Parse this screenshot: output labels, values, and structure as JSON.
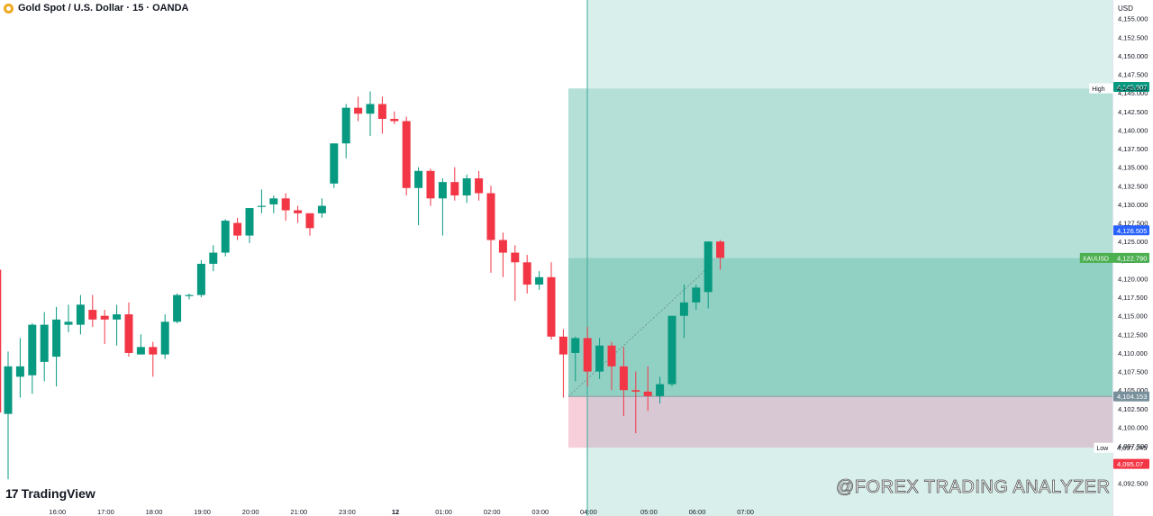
{
  "header": {
    "title": "Gold Spot / U.S. Dollar · 15 · OANDA",
    "currency": "USD"
  },
  "branding": {
    "logo_text": "TradingView",
    "logo_mark": "17",
    "watermark": "@FOREX TRADING ANALYZER"
  },
  "colors": {
    "up": "#089981",
    "down": "#f23645",
    "zone_upper": "#b9e2db",
    "zone_lower": "#f4c6d3",
    "price_tag": "#4caf50",
    "blue_tag": "#2962ff",
    "gray_tag": "#78909c",
    "high_tag": "#089981"
  },
  "chart_data": {
    "type": "candlestick",
    "symbol": "XAUUSD",
    "interval": "15",
    "ylim": [
      4090.0,
      4157.5
    ],
    "y_ticks": [
      4092.5,
      4095.0,
      4097.5,
      4100.0,
      4102.5,
      4105.0,
      4107.5,
      4110.0,
      4112.5,
      4115.0,
      4117.5,
      4120.0,
      4122.5,
      4125.0,
      4127.5,
      4130.0,
      4132.5,
      4135.0,
      4137.5,
      4140.0,
      4142.5,
      4145.0,
      4147.5,
      4150.0,
      4152.5,
      4155.0
    ],
    "x_ticks": [
      {
        "label": "16:00",
        "index": 2
      },
      {
        "label": "17:00",
        "index": 6
      },
      {
        "label": "18:00",
        "index": 10
      },
      {
        "label": "19:00",
        "index": 14
      },
      {
        "label": "20:00",
        "index": 18
      },
      {
        "label": "21:00",
        "index": 22
      },
      {
        "label": "23:00",
        "index": 26
      },
      {
        "label": "12",
        "index": 30,
        "bold": true
      },
      {
        "label": "01:00",
        "index": 34
      },
      {
        "label": "02:00",
        "index": 38
      },
      {
        "label": "03:00",
        "index": 42
      },
      {
        "label": "04:00",
        "index": 46
      },
      {
        "label": "05:00",
        "index": 51
      },
      {
        "label": "06:00",
        "index": 55
      },
      {
        "label": "07:00",
        "index": 59
      }
    ],
    "candles": [
      {
        "o": 4101.8,
        "h": 4110.2,
        "l": 4093.0,
        "c": 4108.2
      },
      {
        "o": 4106.8,
        "h": 4112.0,
        "l": 4104.0,
        "c": 4108.2
      },
      {
        "o": 4107.0,
        "h": 4114.0,
        "l": 4104.5,
        "c": 4113.8
      },
      {
        "o": 4108.8,
        "h": 4115.5,
        "l": 4106.2,
        "c": 4113.8
      },
      {
        "o": 4109.5,
        "h": 4116.2,
        "l": 4105.5,
        "c": 4114.5
      },
      {
        "o": 4113.8,
        "h": 4116.5,
        "l": 4112.8,
        "c": 4114.2
      },
      {
        "o": 4113.8,
        "h": 4117.8,
        "l": 4112.5,
        "c": 4116.5
      },
      {
        "o": 4115.8,
        "h": 4117.8,
        "l": 4113.5,
        "c": 4114.5
      },
      {
        "o": 4115.0,
        "h": 4115.8,
        "l": 4111.2,
        "c": 4114.5
      },
      {
        "o": 4114.5,
        "h": 4116.5,
        "l": 4111.0,
        "c": 4115.2
      },
      {
        "o": 4115.2,
        "h": 4116.8,
        "l": 4109.5,
        "c": 4110.0
      },
      {
        "o": 4109.8,
        "h": 4112.5,
        "l": 4109.8,
        "c": 4110.8
      },
      {
        "o": 4110.8,
        "h": 4111.5,
        "l": 4106.8,
        "c": 4109.8
      },
      {
        "o": 4109.8,
        "h": 4115.2,
        "l": 4109.2,
        "c": 4114.2
      },
      {
        "o": 4114.2,
        "h": 4118.0,
        "l": 4114.0,
        "c": 4117.8
      },
      {
        "o": 4117.8,
        "h": 4118.0,
        "l": 4117.2,
        "c": 4117.8
      },
      {
        "o": 4117.8,
        "h": 4122.5,
        "l": 4117.5,
        "c": 4122.0
      },
      {
        "o": 4122.0,
        "h": 4124.5,
        "l": 4121.0,
        "c": 4123.5
      },
      {
        "o": 4123.5,
        "h": 4128.0,
        "l": 4123.0,
        "c": 4127.8
      },
      {
        "o": 4127.5,
        "h": 4128.2,
        "l": 4125.2,
        "c": 4125.8
      },
      {
        "o": 4125.8,
        "h": 4129.5,
        "l": 4124.8,
        "c": 4129.5
      },
      {
        "o": 4129.8,
        "h": 4132.0,
        "l": 4128.8,
        "c": 4129.8
      },
      {
        "o": 4130.0,
        "h": 4131.2,
        "l": 4128.8,
        "c": 4130.8
      },
      {
        "o": 4130.8,
        "h": 4131.5,
        "l": 4127.8,
        "c": 4129.2
      },
      {
        "o": 4129.2,
        "h": 4129.8,
        "l": 4127.5,
        "c": 4128.8
      },
      {
        "o": 4128.8,
        "h": 4128.8,
        "l": 4125.8,
        "c": 4126.8
      },
      {
        "o": 4128.8,
        "h": 4130.8,
        "l": 4128.2,
        "c": 4129.8
      },
      {
        "o": 4132.8,
        "h": 4138.2,
        "l": 4132.2,
        "c": 4138.2
      },
      {
        "o": 4138.2,
        "h": 4143.5,
        "l": 4136.2,
        "c": 4143.0
      },
      {
        "o": 4143.0,
        "h": 4144.5,
        "l": 4141.2,
        "c": 4142.2
      },
      {
        "o": 4142.2,
        "h": 4145.2,
        "l": 4139.2,
        "c": 4143.5
      },
      {
        "o": 4143.5,
        "h": 4144.5,
        "l": 4139.5,
        "c": 4141.5
      },
      {
        "o": 4141.5,
        "h": 4142.5,
        "l": 4140.8,
        "c": 4141.2
      },
      {
        "o": 4141.2,
        "h": 4141.8,
        "l": 4131.2,
        "c": 4132.2
      },
      {
        "o": 4132.2,
        "h": 4135.0,
        "l": 4127.2,
        "c": 4134.5
      },
      {
        "o": 4134.5,
        "h": 4134.8,
        "l": 4129.8,
        "c": 4130.8
      },
      {
        "o": 4130.8,
        "h": 4133.5,
        "l": 4125.8,
        "c": 4133.0
      },
      {
        "o": 4133.0,
        "h": 4135.0,
        "l": 4130.5,
        "c": 4131.2
      },
      {
        "o": 4131.2,
        "h": 4134.0,
        "l": 4130.2,
        "c": 4133.5
      },
      {
        "o": 4133.5,
        "h": 4134.5,
        "l": 4130.5,
        "c": 4131.5
      },
      {
        "o": 4131.5,
        "h": 4132.5,
        "l": 4120.8,
        "c": 4125.2
      },
      {
        "o": 4125.2,
        "h": 4126.2,
        "l": 4120.2,
        "c": 4123.5
      },
      {
        "o": 4123.5,
        "h": 4124.5,
        "l": 4117.0,
        "c": 4122.2
      },
      {
        "o": 4122.2,
        "h": 4123.2,
        "l": 4118.0,
        "c": 4119.2
      },
      {
        "o": 4119.2,
        "h": 4121.0,
        "l": 4118.5,
        "c": 4120.2
      },
      {
        "o": 4120.2,
        "h": 4122.2,
        "l": 4111.8,
        "c": 4112.2
      },
      {
        "o": 4112.2,
        "h": 4113.2,
        "l": 4104.0,
        "c": 4109.8
      },
      {
        "o": 4110.0,
        "h": 4112.2,
        "l": 4106.2,
        "c": 4112.0
      },
      {
        "o": 4112.0,
        "h": 4113.5,
        "l": 4105.5,
        "c": 4107.5
      },
      {
        "o": 4107.5,
        "h": 4112.0,
        "l": 4106.5,
        "c": 4111.0
      },
      {
        "o": 4111.0,
        "h": 4111.5,
        "l": 4105.0,
        "c": 4108.2
      },
      {
        "o": 4108.2,
        "h": 4110.8,
        "l": 4101.5,
        "c": 4105.0
      },
      {
        "o": 4105.0,
        "h": 4107.5,
        "l": 4099.2,
        "c": 4104.8
      },
      {
        "o": 4104.8,
        "h": 4108.2,
        "l": 4102.2,
        "c": 4104.2
      },
      {
        "o": 4104.2,
        "h": 4106.8,
        "l": 4103.2,
        "c": 4105.8
      },
      {
        "o": 4105.8,
        "h": 4115.0,
        "l": 4105.5,
        "c": 4115.0
      },
      {
        "o": 4115.0,
        "h": 4119.2,
        "l": 4112.0,
        "c": 4116.8
      },
      {
        "o": 4116.8,
        "h": 4119.2,
        "l": 4115.8,
        "c": 4118.8
      },
      {
        "o": 4118.2,
        "h": 4125.0,
        "l": 4116.0,
        "c": 4125.0
      },
      {
        "o": 4125.0,
        "h": 4125.2,
        "l": 4121.2,
        "c": 4122.8
      }
    ],
    "zones": {
      "upper_top": 4157.5,
      "upper_mid": 4145.6,
      "entry": 4122.79,
      "stop": 4104.15,
      "low": 4097.245
    },
    "price_labels": [
      {
        "label": "",
        "value": "4,145.807",
        "y": 4145.807,
        "color": "#089981"
      },
      {
        "label": "High",
        "value": "4,145.610",
        "y": 4145.61,
        "color": "none"
      },
      {
        "label": "",
        "value": "4,126.505",
        "y": 4126.505,
        "color": "#2962ff"
      },
      {
        "label": "XAUUSD",
        "value": "4,122.790",
        "y": 4122.79,
        "color": "#4caf50"
      },
      {
        "label": "",
        "value": "4,104.153",
        "y": 4104.153,
        "color": "#78909c"
      },
      {
        "label": "Low",
        "value": "4,097.245",
        "y": 4097.245,
        "color": "none"
      },
      {
        "label": "",
        "value": "4,095.07",
        "y": 4095.07,
        "color": "#f23645"
      }
    ]
  }
}
